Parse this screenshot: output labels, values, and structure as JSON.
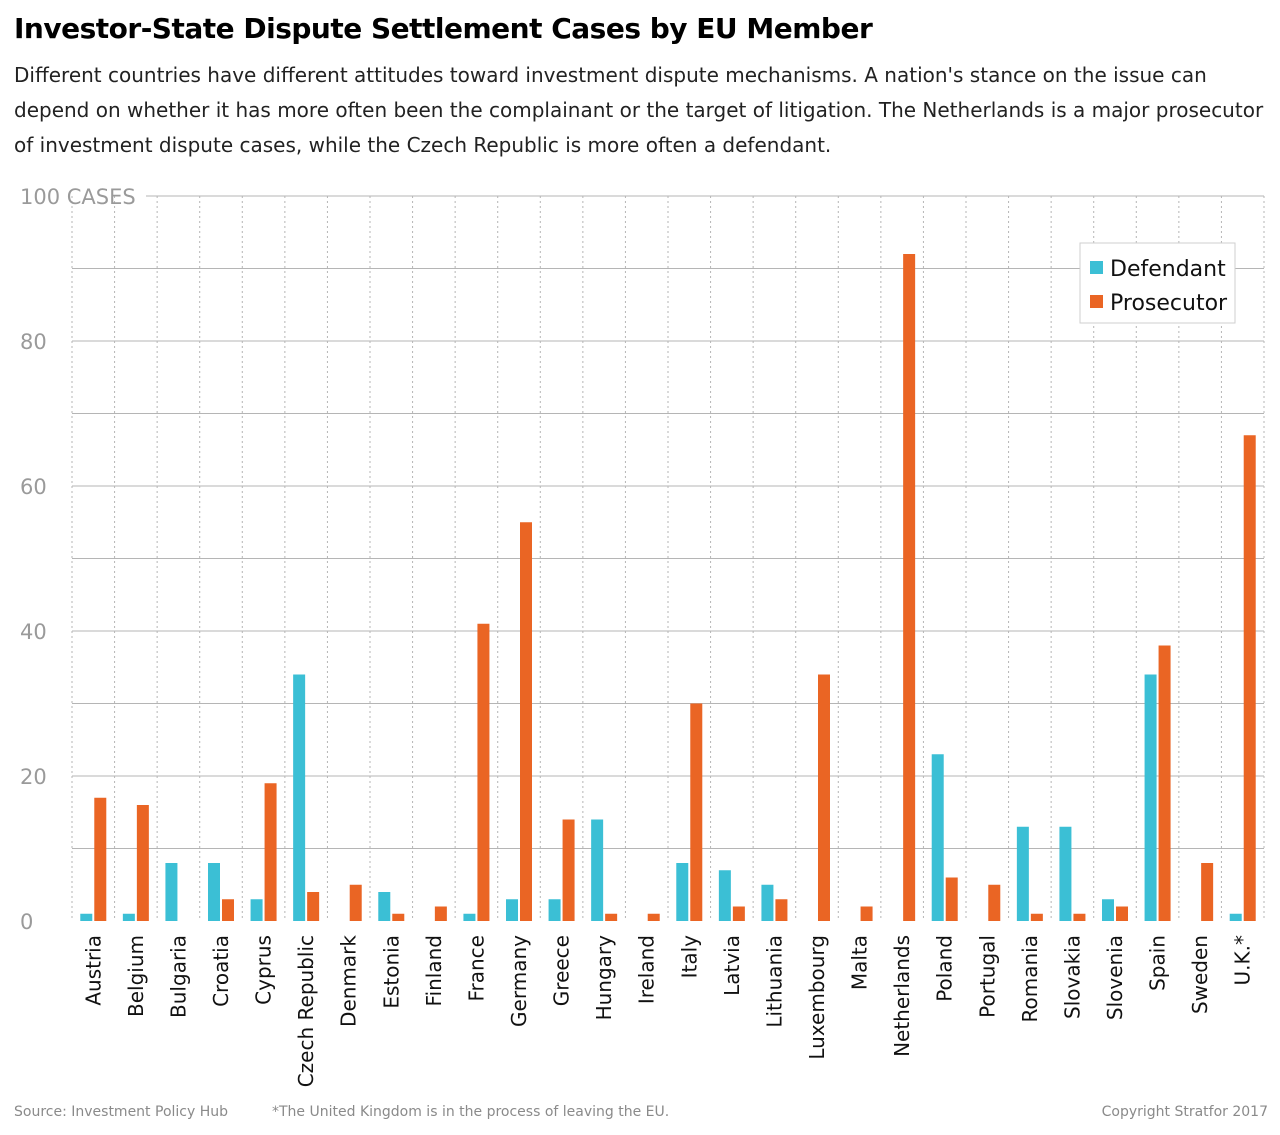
{
  "header": {
    "title": "Investor-State Dispute Settlement Cases by EU Member",
    "subtitle": "Different countries have different attitudes toward investment dispute mechanisms. A nation's stance on the issue can depend on whether it has more often been the complainant or the target of litigation. The Netherlands is a major prosecutor of investment dispute cases, while the Czech Republic is more often a defendant."
  },
  "footer": {
    "source": "Source: Investment Policy Hub",
    "footnote": "*The United Kingdom is in the process of leaving the EU.",
    "copyright": "Copyright Stratfor 2017"
  },
  "colors": {
    "defendant": "#3bbfd5",
    "prosecutor": "#ea6524",
    "gridline": "#b5b5b5",
    "axis_label": "#9a9a9a"
  },
  "chart_data": {
    "type": "bar",
    "categories": [
      "Austria",
      "Belgium",
      "Bulgaria",
      "Croatia",
      "Cyprus",
      "Czech Republic",
      "Denmark",
      "Estonia",
      "Finland",
      "France",
      "Germany",
      "Greece",
      "Hungary",
      "Ireland",
      "Italy",
      "Latvia",
      "Lithuania",
      "Luxembourg",
      "Malta",
      "Netherlands",
      "Poland",
      "Portugal",
      "Romania",
      "Slovakia",
      "Slovenia",
      "Spain",
      "Sweden",
      "U.K.*"
    ],
    "series": [
      {
        "name": "Defendant",
        "values": [
          1,
          1,
          8,
          8,
          3,
          34,
          0,
          4,
          0,
          1,
          3,
          3,
          14,
          0,
          8,
          7,
          5,
          0,
          0,
          0,
          23,
          0,
          13,
          13,
          3,
          34,
          0,
          1
        ]
      },
      {
        "name": "Prosecutor",
        "values": [
          17,
          16,
          0,
          3,
          19,
          4,
          5,
          1,
          2,
          41,
          55,
          14,
          1,
          1,
          30,
          2,
          3,
          34,
          2,
          92,
          6,
          5,
          1,
          1,
          2,
          38,
          8,
          67
        ]
      }
    ],
    "y_ticks": [
      0,
      20,
      40,
      60,
      80,
      100
    ],
    "y_tick_labels": [
      "0",
      "20",
      "40",
      "60",
      "80",
      "100 CASES"
    ],
    "ylim": [
      0,
      100
    ],
    "grid": true,
    "legend": {
      "position": "top-right",
      "entries": [
        "Defendant",
        "Prosecutor"
      ]
    }
  }
}
